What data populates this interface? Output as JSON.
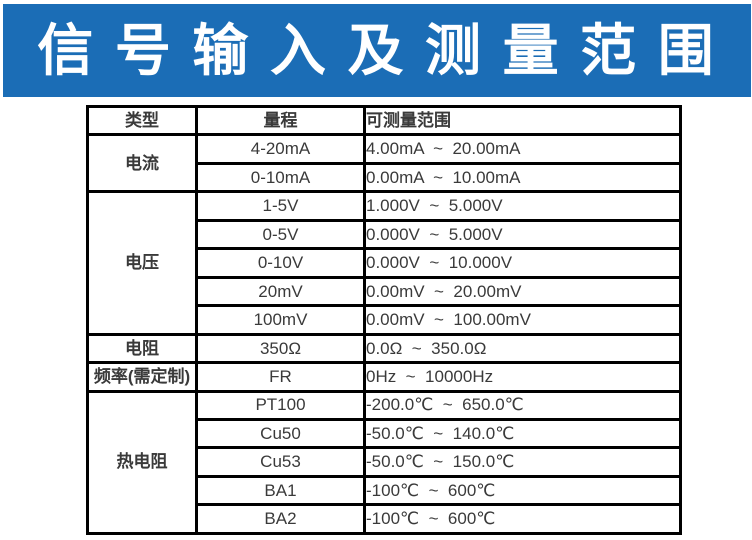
{
  "banner": {
    "title": "信 号 输 入 及 测 量 范 围",
    "bg_color": "#1b6db6",
    "text_color": "#ffffff"
  },
  "table": {
    "border_color": "#000000",
    "headers": [
      "类型",
      "量程",
      "可测量范围"
    ],
    "groups": [
      {
        "type": "电流",
        "rows": [
          {
            "range": "4-20mA",
            "span": "4.00mA  ~  20.00mA"
          },
          {
            "range": "0-10mA",
            "span": "0.00mA  ~  10.00mA"
          }
        ]
      },
      {
        "type": "电压",
        "rows": [
          {
            "range": "1-5V",
            "span": "1.000V  ~  5.000V"
          },
          {
            "range": "0-5V",
            "span": "0.000V  ~  5.000V"
          },
          {
            "range": "0-10V",
            "span": "0.000V  ~  10.000V"
          },
          {
            "range": "20mV",
            "span": "0.00mV  ~  20.00mV"
          },
          {
            "range": "100mV",
            "span": "0.00mV  ~  100.00mV"
          }
        ]
      },
      {
        "type": "电阻",
        "rows": [
          {
            "range": "350Ω",
            "span": "0.0Ω  ~  350.0Ω"
          }
        ]
      },
      {
        "type": "频率(需定制)",
        "rows": [
          {
            "range": "FR",
            "span": "0Hz  ~  10000Hz"
          }
        ]
      },
      {
        "type": "热电阻",
        "rows": [
          {
            "range": "PT100",
            "span": "-200.0℃  ~  650.0℃"
          },
          {
            "range": "Cu50",
            "span": "-50.0℃  ~  140.0℃"
          },
          {
            "range": "Cu53",
            "span": "-50.0℃  ~  150.0℃"
          },
          {
            "range": "BA1",
            "span": "-100℃  ~  600℃"
          },
          {
            "range": "BA2",
            "span": "-100℃  ~  600℃"
          }
        ]
      }
    ]
  }
}
